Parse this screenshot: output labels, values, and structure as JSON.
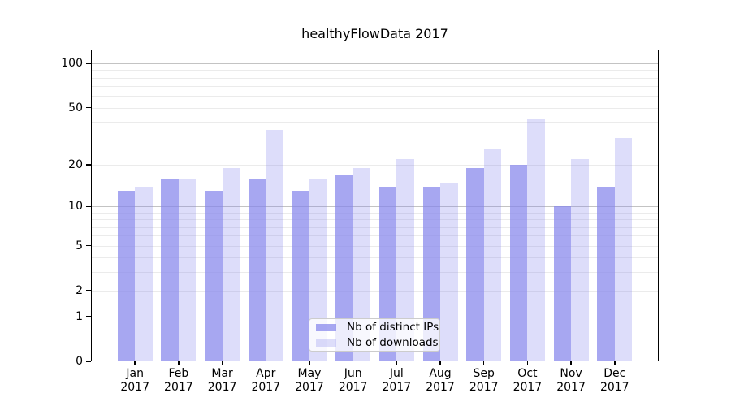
{
  "chart_data": {
    "type": "bar",
    "title": "healthyFlowData 2017",
    "categories": [
      "Jan",
      "Feb",
      "Mar",
      "Apr",
      "May",
      "Jun",
      "Jul",
      "Aug",
      "Sep",
      "Oct",
      "Nov",
      "Dec"
    ],
    "category_year": "2017",
    "series": [
      {
        "name": "Nb of distinct IPs",
        "values": [
          13,
          16,
          13,
          16,
          13,
          17,
          14,
          14,
          19,
          20,
          10,
          14
        ],
        "color": "rgba(133,133,236,0.72)"
      },
      {
        "name": "Nb of downloads",
        "values": [
          14,
          16,
          19,
          35,
          16,
          19,
          22,
          15,
          26,
          42,
          22,
          31
        ],
        "color": "rgba(133,133,236,0.28)"
      }
    ],
    "xlabel": "",
    "ylabel": "",
    "yscale": "log1p",
    "ylim": [
      0,
      120
    ],
    "y_tick_values": [
      100,
      50,
      20,
      10,
      5,
      2,
      1,
      0
    ],
    "y_tick_labels": [
      "100",
      "50",
      "20",
      "10",
      "5",
      "2",
      "1",
      "0"
    ],
    "y_major_gridlines": [
      1,
      10,
      100
    ],
    "y_minor_gridlines": [
      2,
      3,
      4,
      5,
      6,
      7,
      8,
      9,
      20,
      30,
      40,
      50,
      60,
      70,
      80,
      90
    ],
    "grid": true,
    "legend_position": "lower center"
  },
  "colors": {
    "bar_base": "#8585ec",
    "major_grid": "#c3c3c3",
    "minor_grid": "#ebebeb",
    "spine": "#000000",
    "legend_border": "#cccccc"
  }
}
